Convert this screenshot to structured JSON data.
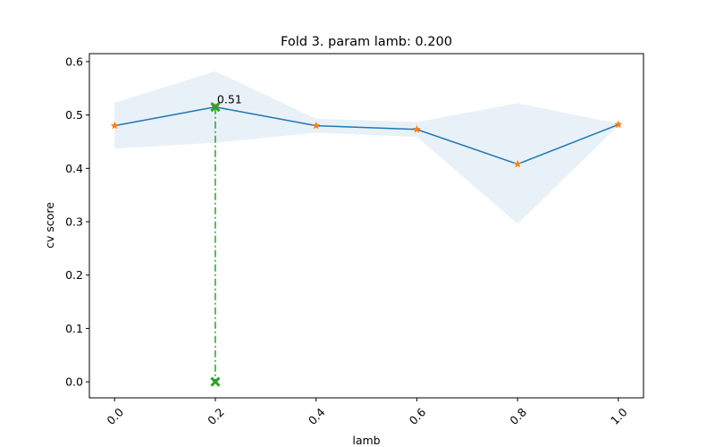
{
  "chart_data": {
    "type": "line",
    "title": "Fold 3. param lamb: 0.200",
    "xlabel": "lamb",
    "ylabel": "cv score",
    "xlim": [
      -0.05,
      1.05
    ],
    "ylim": [
      -0.03,
      0.615
    ],
    "xticks": [
      0.0,
      0.2,
      0.4,
      0.6,
      0.8,
      1.0
    ],
    "xtick_labels": [
      "0.0",
      "0.2",
      "0.4",
      "0.6",
      "0.8",
      "1.0"
    ],
    "yticks": [
      0.0,
      0.1,
      0.2,
      0.3,
      0.4,
      0.5,
      0.6
    ],
    "ytick_labels": [
      "0.0",
      "0.1",
      "0.2",
      "0.3",
      "0.4",
      "0.5",
      "0.6"
    ],
    "grid": false,
    "series": [
      {
        "x": [
          0.0,
          0.2,
          0.4,
          0.6,
          0.8,
          1.0
        ],
        "mean": [
          0.48,
          0.515,
          0.48,
          0.473,
          0.408,
          0.482
        ],
        "upper": [
          0.523,
          0.582,
          0.493,
          0.487,
          0.522,
          0.484
        ],
        "lower": [
          0.437,
          0.448,
          0.467,
          0.459,
          0.296,
          0.48
        ]
      }
    ],
    "best": {
      "x": 0.2,
      "y": 0.515,
      "label": "0.51"
    },
    "colors": {
      "line": "#1f77b4",
      "marker": "#ff7f0e",
      "band": "#1f77b4",
      "best": "#2ca02c"
    }
  }
}
